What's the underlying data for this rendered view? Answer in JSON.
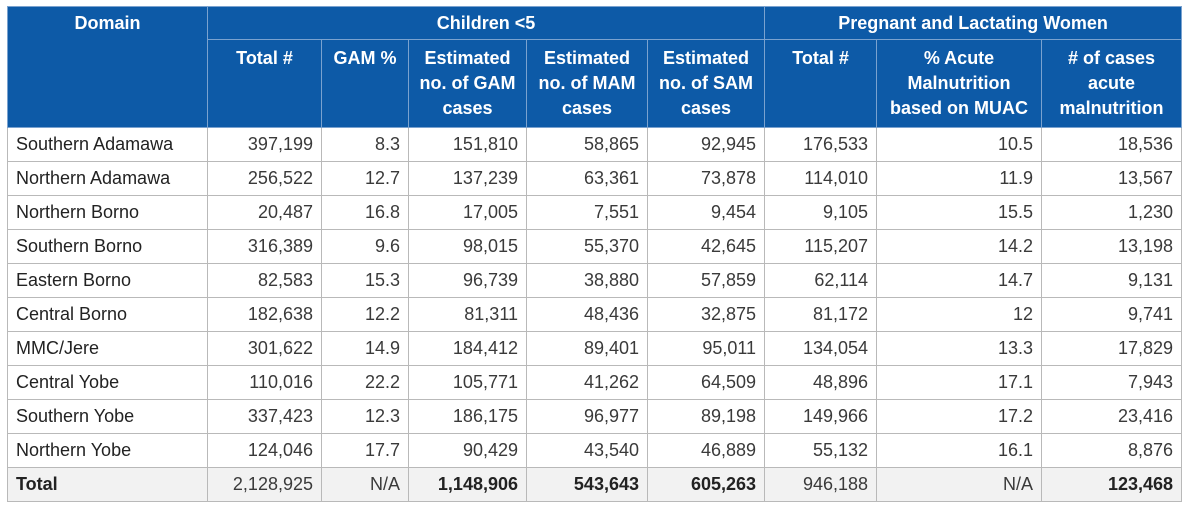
{
  "headers": {
    "domain": "Domain",
    "children_group": "Children <5",
    "plw_group": "Pregnant and Lactating Women",
    "sub": [
      "Total #",
      "GAM %",
      "Estimated no. of GAM cases",
      "Estimated no. of MAM cases",
      "Estimated no. of SAM cases",
      "Total #",
      "% Acute Malnutrition based on MUAC",
      "# of cases acute malnutrition"
    ]
  },
  "rows": [
    [
      "Southern Adamawa",
      "397,199",
      "8.3",
      "151,810",
      "58,865",
      "92,945",
      "176,533",
      "10.5",
      "18,536"
    ],
    [
      "Northern Adamawa",
      "256,522",
      "12.7",
      "137,239",
      "63,361",
      "73,878",
      "114,010",
      "11.9",
      "13,567"
    ],
    [
      "Northern Borno",
      "20,487",
      "16.8",
      "17,005",
      "7,551",
      "9,454",
      "9,105",
      "15.5",
      "1,230"
    ],
    [
      "Southern Borno",
      "316,389",
      "9.6",
      "98,015",
      "55,370",
      "42,645",
      "115,207",
      "14.2",
      "13,198"
    ],
    [
      "Eastern Borno",
      "82,583",
      "15.3",
      "96,739",
      "38,880",
      "57,859",
      "62,114",
      "14.7",
      "9,131"
    ],
    [
      "Central Borno",
      "182,638",
      "12.2",
      "81,311",
      "48,436",
      "32,875",
      "81,172",
      "12",
      "9,741"
    ],
    [
      "MMC/Jere",
      "301,622",
      "14.9",
      "184,412",
      "89,401",
      "95,011",
      "134,054",
      "13.3",
      "17,829"
    ],
    [
      "Central Yobe",
      "110,016",
      "22.2",
      "105,771",
      "41,262",
      "64,509",
      "48,896",
      "17.1",
      "7,943"
    ],
    [
      "Southern Yobe",
      "337,423",
      "12.3",
      "186,175",
      "96,977",
      "89,198",
      "149,966",
      "17.2",
      "23,416"
    ],
    [
      "Northern Yobe",
      "124,046",
      "17.7",
      "90,429",
      "43,540",
      "46,889",
      "55,132",
      "16.1",
      "8,876"
    ]
  ],
  "total": [
    "Total",
    "2,128,925",
    "N/A",
    "1,148,906",
    "543,643",
    "605,263",
    "946,188",
    "N/A",
    "123,468"
  ]
}
